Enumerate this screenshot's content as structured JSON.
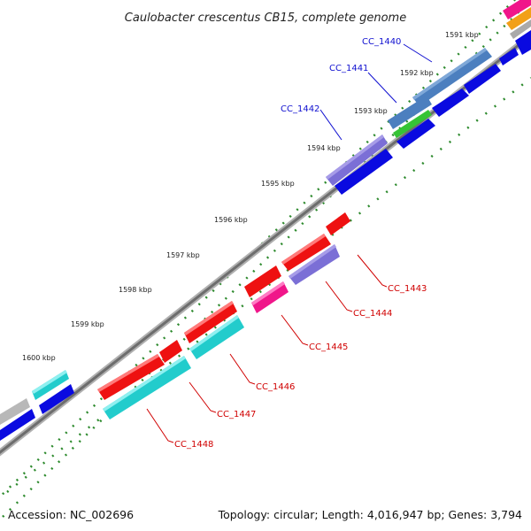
{
  "title": "Caulobacter crescentus CB15, complete genome",
  "footer": {
    "accession": "Accession: NC_002696",
    "summary": "Topology: circular; Length: 4,016,947 bp; Genes: 3,794"
  },
  "ticks": {
    "kbp_1591": "1591 kbp",
    "kbp_1592": "1592 kbp",
    "kbp_1593": "1593 kbp",
    "kbp_1594": "1594 kbp",
    "kbp_1595": "1595 kbp",
    "kbp_1596": "1596 kbp",
    "kbp_1597": "1597 kbp",
    "kbp_1598": "1598 kbp",
    "kbp_1599": "1599 kbp",
    "kbp_1600": "1600 kbp"
  },
  "genes": {
    "cc_1440": "CC_1440",
    "cc_1441": "CC_1441",
    "cc_1442": "CC_1442",
    "cc_1443": "CC_1443",
    "cc_1444": "CC_1444",
    "cc_1445": "CC_1445",
    "cc_1446": "CC_1446",
    "cc_1447": "CC_1447",
    "cc_1448": "CC_1448"
  },
  "colors": {
    "forward_label": "#1010d0",
    "reverse_label": "#d00000",
    "backbone": "#8c8c8c",
    "tick": "#2d8a2d",
    "blue": "#0a0ae0",
    "red": "#ee1111",
    "cyan": "#22cccc",
    "lavender": "#7b6fd6",
    "magenta": "#f0168a",
    "steelblue": "#4c7fbf",
    "green": "#35c435",
    "gray": "#b8b8b8"
  }
}
